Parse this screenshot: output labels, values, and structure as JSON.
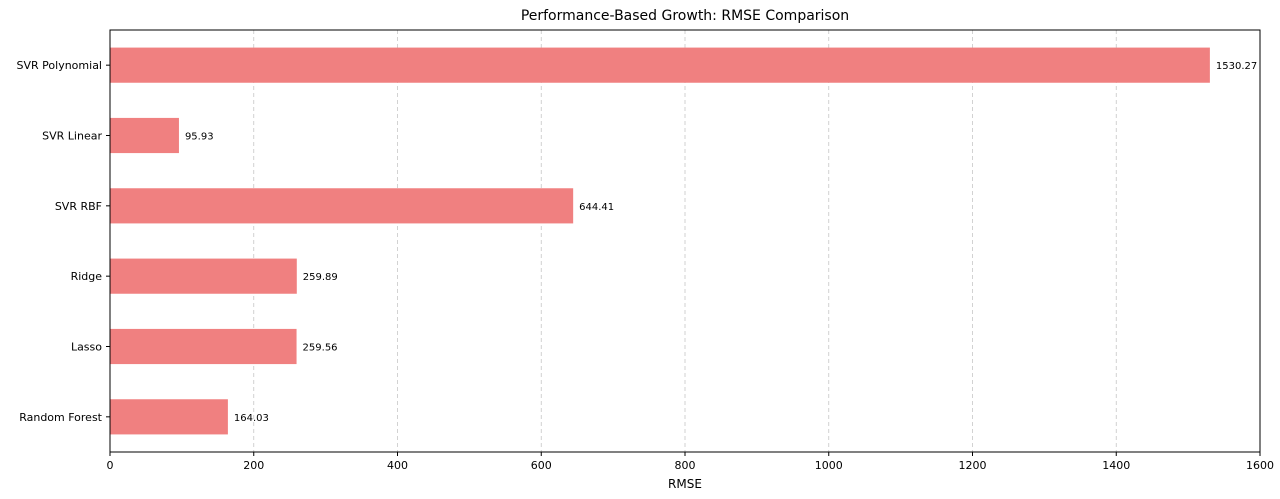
{
  "chart_data": {
    "type": "bar",
    "orientation": "horizontal",
    "title": "Performance-Based Growth: RMSE Comparison",
    "xlabel": "RMSE",
    "ylabel": "",
    "xlim": [
      0,
      1600
    ],
    "xticks": [
      0,
      200,
      400,
      600,
      800,
      1000,
      1200,
      1400,
      1600
    ],
    "grid": "vertical dashed",
    "bar_color": "#f08080",
    "categories": [
      "SVR Polynomial",
      "SVR Linear",
      "SVR RBF",
      "Ridge",
      "Lasso",
      "Random Forest"
    ],
    "values": [
      1530.27,
      95.93,
      644.41,
      259.89,
      259.56,
      164.03
    ],
    "value_labels": [
      "1530.27",
      "95.93",
      "644.41",
      "259.89",
      "259.56",
      "164.03"
    ]
  }
}
